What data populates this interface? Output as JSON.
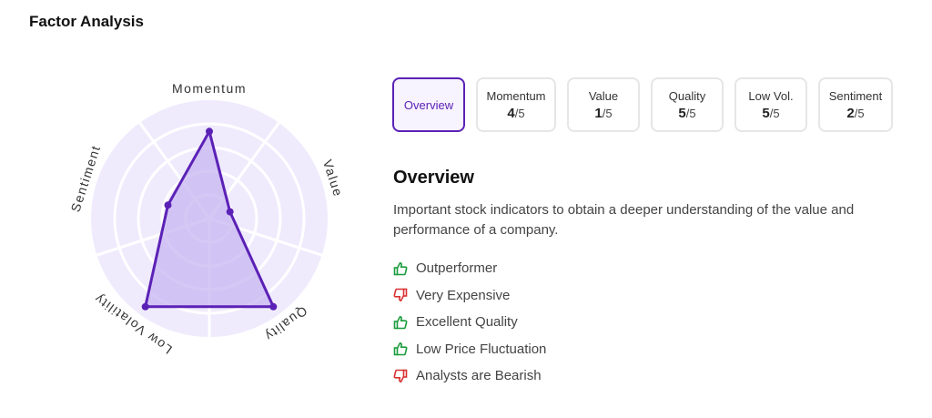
{
  "header": {
    "title": "Factor Analysis"
  },
  "radar": {
    "axes": [
      "Momentum",
      "Value",
      "Quality",
      "Low Volatility",
      "Sentiment"
    ],
    "scores": [
      4,
      1,
      5,
      5,
      2
    ],
    "max": 5,
    "colors": {
      "ring": "#efebfd",
      "grid": "#ffffff",
      "fill": "#c8b5f2",
      "stroke": "#5b21b6"
    }
  },
  "tabs": [
    {
      "label": "Overview",
      "score": null,
      "max": null,
      "active": true
    },
    {
      "label": "Momentum",
      "score": "4",
      "max": "/5",
      "active": false
    },
    {
      "label": "Value",
      "score": "1",
      "max": "/5",
      "active": false
    },
    {
      "label": "Quality",
      "score": "5",
      "max": "/5",
      "active": false
    },
    {
      "label": "Low Vol.",
      "score": "5",
      "max": "/5",
      "active": false
    },
    {
      "label": "Sentiment",
      "score": "2",
      "max": "/5",
      "active": false
    }
  ],
  "overview": {
    "title": "Overview",
    "description": "Important stock indicators to obtain a deeper understanding of the value and performance of a company.",
    "factors": [
      {
        "text": "Outperformer",
        "sentiment": "positive",
        "icon": "thumbs-up-icon"
      },
      {
        "text": "Very Expensive",
        "sentiment": "negative",
        "icon": "thumbs-down-icon"
      },
      {
        "text": "Excellent Quality",
        "sentiment": "positive",
        "icon": "thumbs-up-icon"
      },
      {
        "text": "Low Price Fluctuation",
        "sentiment": "positive",
        "icon": "thumbs-up-icon"
      },
      {
        "text": "Analysts are Bearish",
        "sentiment": "negative",
        "icon": "thumbs-down-icon"
      }
    ],
    "colors": {
      "positive": "#1a9c3c",
      "negative": "#d93030"
    }
  }
}
